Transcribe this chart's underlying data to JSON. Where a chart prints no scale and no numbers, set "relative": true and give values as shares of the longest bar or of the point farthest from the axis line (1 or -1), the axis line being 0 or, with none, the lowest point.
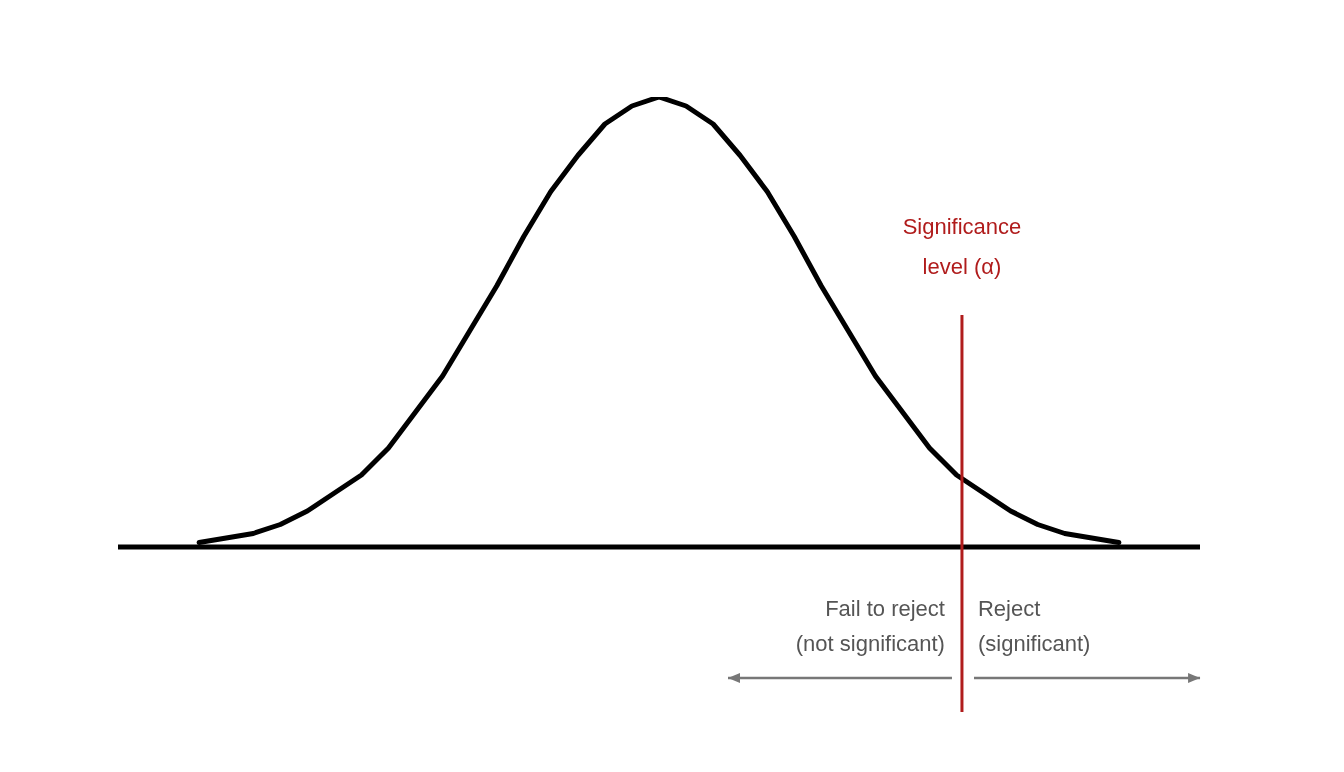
{
  "chart_data": {
    "type": "line",
    "relative": true,
    "tick_labels": false,
    "marker": "none",
    "line_style": "solid",
    "categories": [
      null,
      null,
      null,
      null,
      null,
      null,
      null,
      null,
      null,
      null,
      null,
      null,
      null,
      null,
      null,
      null,
      null,
      null,
      null,
      null,
      null,
      null,
      null,
      null,
      null,
      null,
      null,
      null,
      null,
      null,
      null,
      null,
      null,
      null,
      null,
      null,
      null,
      null,
      null,
      null,
      null
    ],
    "series": [
      {
        "color": "#000000",
        "values": [
          null,
          null,
          null,
          0.01,
          0.02,
          0.03,
          0.05,
          0.08,
          0.12,
          0.16,
          0.22,
          0.3,
          0.38,
          0.48,
          0.58,
          0.69,
          0.79,
          0.87,
          0.94,
          0.98,
          1,
          0.98,
          0.94,
          0.87,
          0.79,
          0.69,
          0.58,
          0.48,
          0.38,
          0.3,
          0.22,
          0.16,
          0.12,
          0.08,
          0.05,
          0.03,
          0.02,
          0.01,
          null,
          null,
          null
        ]
      }
    ],
    "ref_lines": [
      {
        "axis": "x",
        "label": "Significance level (α)",
        "color": "#b01c1c"
      }
    ],
    "annotations": [
      "Fail to reject\n(not significant)",
      "Reject\n(significant)"
    ]
  }
}
